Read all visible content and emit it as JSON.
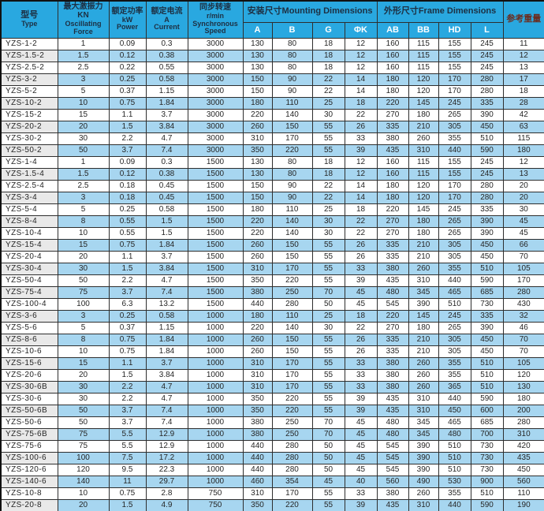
{
  "table": {
    "headers": {
      "type_zh": "型号",
      "type_en": "Type",
      "force_zh": "最大激振力KN",
      "force_en1": "Oscillating",
      "force_en2": "Force",
      "power_zh": "额定功率",
      "power_unit": "kW",
      "power_en": "Power",
      "current_zh": "额定电流",
      "current_unit": "A",
      "current_en": "Current",
      "speed_zh": "同步转速",
      "speed_unit": "r/min",
      "speed_en": "Synchronous Speed",
      "mounting_group": "安装尺寸Mounting Dimensions",
      "frame_group": "外形尺寸Frame Dimensions",
      "weight": "参考重量",
      "sub": [
        "A",
        "B",
        "G",
        "ΦK",
        "AB",
        "BB",
        "HD",
        "L"
      ]
    },
    "rows": [
      [
        "YZS-1-2",
        "1",
        "0.09",
        "0.3",
        "3000",
        "130",
        "80",
        "18",
        "12",
        "160",
        "115",
        "155",
        "245",
        "11"
      ],
      [
        "YZS-1.5-2",
        "1.5",
        "0.12",
        "0.38",
        "3000",
        "130",
        "80",
        "18",
        "12",
        "160",
        "115",
        "155",
        "245",
        "12"
      ],
      [
        "YZS-2.5-2",
        "2.5",
        "0.22",
        "0.55",
        "3000",
        "130",
        "80",
        "18",
        "12",
        "160",
        "115",
        "155",
        "245",
        "13"
      ],
      [
        "YZS-3-2",
        "3",
        "0.25",
        "0.58",
        "3000",
        "150",
        "90",
        "22",
        "14",
        "180",
        "120",
        "170",
        "280",
        "17"
      ],
      [
        "YZS-5-2",
        "5",
        "0.37",
        "1.15",
        "3000",
        "150",
        "90",
        "22",
        "14",
        "180",
        "120",
        "170",
        "280",
        "18"
      ],
      [
        "YZS-10-2",
        "10",
        "0.75",
        "1.84",
        "3000",
        "180",
        "110",
        "25",
        "18",
        "220",
        "145",
        "245",
        "335",
        "28"
      ],
      [
        "YZS-15-2",
        "15",
        "1.1",
        "3.7",
        "3000",
        "220",
        "140",
        "30",
        "22",
        "270",
        "180",
        "265",
        "390",
        "42"
      ],
      [
        "YZS-20-2",
        "20",
        "1.5",
        "3.84",
        "3000",
        "260",
        "150",
        "55",
        "26",
        "335",
        "210",
        "305",
        "450",
        "63"
      ],
      [
        "YZS-30-2",
        "30",
        "2.2",
        "4.7",
        "3000",
        "310",
        "170",
        "55",
        "33",
        "380",
        "260",
        "355",
        "510",
        "115"
      ],
      [
        "YZS-50-2",
        "50",
        "3.7",
        "7.4",
        "3000",
        "350",
        "220",
        "55",
        "39",
        "435",
        "310",
        "440",
        "590",
        "180"
      ],
      [
        "YZS-1-4",
        "1",
        "0.09",
        "0.3",
        "1500",
        "130",
        "80",
        "18",
        "12",
        "160",
        "115",
        "155",
        "245",
        "12"
      ],
      [
        "YZS-1.5-4",
        "1.5",
        "0.12",
        "0.38",
        "1500",
        "130",
        "80",
        "18",
        "12",
        "160",
        "115",
        "155",
        "245",
        "13"
      ],
      [
        "YZS-2.5-4",
        "2.5",
        "0.18",
        "0.45",
        "1500",
        "150",
        "90",
        "22",
        "14",
        "180",
        "120",
        "170",
        "280",
        "20"
      ],
      [
        "YZS-3-4",
        "3",
        "0.18",
        "0.45",
        "1500",
        "150",
        "90",
        "22",
        "14",
        "180",
        "120",
        "170",
        "280",
        "20"
      ],
      [
        "YZS-5-4",
        "5",
        "0.25",
        "0.58",
        "1500",
        "180",
        "110",
        "25",
        "18",
        "220",
        "145",
        "245",
        "335",
        "30"
      ],
      [
        "YZS-8-4",
        "8",
        "0.55",
        "1.5",
        "1500",
        "220",
        "140",
        "30",
        "22",
        "270",
        "180",
        "265",
        "390",
        "45"
      ],
      [
        "YZS-10-4",
        "10",
        "0.55",
        "1.5",
        "1500",
        "220",
        "140",
        "30",
        "22",
        "270",
        "180",
        "265",
        "390",
        "45"
      ],
      [
        "YZS-15-4",
        "15",
        "0.75",
        "1.84",
        "1500",
        "260",
        "150",
        "55",
        "26",
        "335",
        "210",
        "305",
        "450",
        "66"
      ],
      [
        "YZS-20-4",
        "20",
        "1.1",
        "3.7",
        "1500",
        "260",
        "150",
        "55",
        "26",
        "335",
        "210",
        "305",
        "450",
        "70"
      ],
      [
        "YZS-30-4",
        "30",
        "1.5",
        "3.84",
        "1500",
        "310",
        "170",
        "55",
        "33",
        "380",
        "260",
        "355",
        "510",
        "105"
      ],
      [
        "YZS-50-4",
        "50",
        "2.2",
        "4.7",
        "1500",
        "350",
        "220",
        "55",
        "39",
        "435",
        "310",
        "440",
        "590",
        "170"
      ],
      [
        "YZS-75-4",
        "75",
        "3.7",
        "7.4",
        "1500",
        "380",
        "250",
        "70",
        "45",
        "480",
        "345",
        "465",
        "685",
        "280"
      ],
      [
        "YZS-100-4",
        "100",
        "6.3",
        "13.2",
        "1500",
        "440",
        "280",
        "50",
        "45",
        "545",
        "390",
        "510",
        "730",
        "430"
      ],
      [
        "YZS-3-6",
        "3",
        "0.25",
        "0.58",
        "1000",
        "180",
        "110",
        "25",
        "18",
        "220",
        "145",
        "245",
        "335",
        "32"
      ],
      [
        "YZS-5-6",
        "5",
        "0.37",
        "1.15",
        "1000",
        "220",
        "140",
        "30",
        "22",
        "270",
        "180",
        "265",
        "390",
        "46"
      ],
      [
        "YZS-8-6",
        "8",
        "0.75",
        "1.84",
        "1000",
        "260",
        "150",
        "55",
        "26",
        "335",
        "210",
        "305",
        "450",
        "70"
      ],
      [
        "YZS-10-6",
        "10",
        "0.75",
        "1.84",
        "1000",
        "260",
        "150",
        "55",
        "26",
        "335",
        "210",
        "305",
        "450",
        "70"
      ],
      [
        "YZS-15-6",
        "15",
        "1.1",
        "3.7",
        "1000",
        "310",
        "170",
        "55",
        "33",
        "380",
        "260",
        "355",
        "510",
        "105"
      ],
      [
        "YZS-20-6",
        "20",
        "1.5",
        "3.84",
        "1000",
        "310",
        "170",
        "55",
        "33",
        "380",
        "260",
        "355",
        "510",
        "120"
      ],
      [
        "YZS-30-6B",
        "30",
        "2.2",
        "4.7",
        "1000",
        "310",
        "170",
        "55",
        "33",
        "380",
        "260",
        "365",
        "510",
        "130"
      ],
      [
        "YZS-30-6",
        "30",
        "2.2",
        "4.7",
        "1000",
        "350",
        "220",
        "55",
        "39",
        "435",
        "310",
        "440",
        "590",
        "180"
      ],
      [
        "YZS-50-6B",
        "50",
        "3.7",
        "7.4",
        "1000",
        "350",
        "220",
        "55",
        "39",
        "435",
        "310",
        "450",
        "600",
        "200"
      ],
      [
        "YZS-50-6",
        "50",
        "3.7",
        "7.4",
        "1000",
        "380",
        "250",
        "70",
        "45",
        "480",
        "345",
        "465",
        "685",
        "280"
      ],
      [
        "YZS-75-6B",
        "75",
        "5.5",
        "12.9",
        "1000",
        "380",
        "250",
        "70",
        "45",
        "480",
        "345",
        "480",
        "700",
        "310"
      ],
      [
        "YZS-75-6",
        "75",
        "5.5",
        "12.9",
        "1000",
        "440",
        "280",
        "50",
        "45",
        "545",
        "390",
        "510",
        "730",
        "420"
      ],
      [
        "YZS-100-6",
        "100",
        "7.5",
        "17.2",
        "1000",
        "440",
        "280",
        "50",
        "45",
        "545",
        "390",
        "510",
        "730",
        "435"
      ],
      [
        "YZS-120-6",
        "120",
        "9.5",
        "22.3",
        "1000",
        "440",
        "280",
        "50",
        "45",
        "545",
        "390",
        "510",
        "730",
        "450"
      ],
      [
        "YZS-140-6",
        "140",
        "11",
        "29.7",
        "1000",
        "460",
        "354",
        "45",
        "40",
        "560",
        "490",
        "530",
        "900",
        "560"
      ],
      [
        "YZS-10-8",
        "10",
        "0.75",
        "2.8",
        "750",
        "310",
        "170",
        "55",
        "33",
        "380",
        "260",
        "355",
        "510",
        "110"
      ],
      [
        "YZS-20-8",
        "20",
        "1.5",
        "4.9",
        "750",
        "350",
        "220",
        "55",
        "39",
        "435",
        "310",
        "440",
        "590",
        "190"
      ],
      [
        "YZS-30-8",
        "30",
        "2.2",
        "6.7",
        "750",
        "380",
        "250",
        "70",
        "45",
        "480",
        "345",
        "480",
        "700",
        "300"
      ],
      [
        "YZS-50-8",
        "50",
        "3.7",
        "9.7",
        "750",
        "440",
        "280",
        "50",
        "45",
        "545",
        "390",
        "510",
        "730",
        "430"
      ]
    ]
  },
  "colors": {
    "header_bg": "#29a8e0",
    "header_text": "#1d2f42",
    "subheader_text": "#ffffff",
    "weight_header_text": "#6b2c1f",
    "stripe_blue": "#a7d6f0",
    "stripe_gray": "#e9e9e9",
    "grid_line": "#2e2e2e"
  }
}
